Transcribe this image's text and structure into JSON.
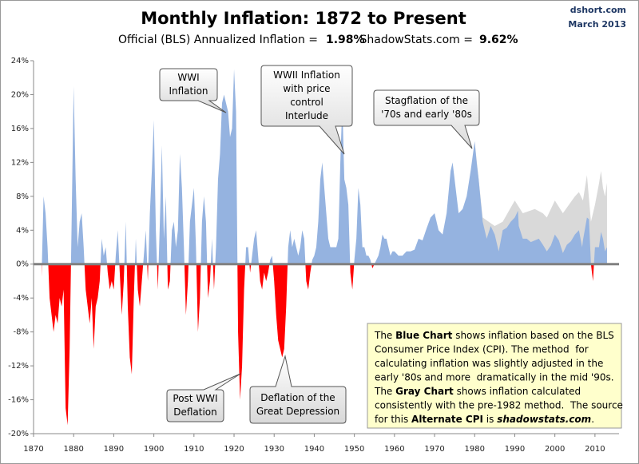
{
  "header": {
    "title": "Monthly Inflation: 1872 to Present",
    "official_label": "Official (BLS) Annualized Inflation =",
    "official_value": "1.98%",
    "shadow_label": "ShadowStats.com =",
    "shadow_value": "9.62%",
    "source": "dshort.com",
    "date": "March 2013"
  },
  "chart_data": {
    "type": "area",
    "xlim": [
      1870,
      2016
    ],
    "xticks": [
      1870,
      1880,
      1890,
      1900,
      1910,
      1920,
      1930,
      1940,
      1950,
      1960,
      1970,
      1980,
      1990,
      2000,
      2010
    ],
    "ylim": [
      -20,
      24
    ],
    "yticks": [
      {
        "value": -20,
        "label": "-20%"
      },
      {
        "value": -16,
        "label": "-16%"
      },
      {
        "value": -12,
        "label": "-12%"
      },
      {
        "value": -8,
        "label": "-8%"
      },
      {
        "value": -4,
        "label": "-4%"
      },
      {
        "value": 0,
        "label": "0%"
      },
      {
        "value": 4,
        "label": "4%"
      },
      {
        "value": 8,
        "label": "8%"
      },
      {
        "value": 12,
        "label": "12%"
      },
      {
        "value": 16,
        "label": "16%"
      },
      {
        "value": 20,
        "label": "20%"
      },
      {
        "value": 24,
        "label": "24%"
      }
    ],
    "series": [
      {
        "color": "#d9d9d9",
        "x": [
          1980,
          1982,
          1985,
          1987,
          1990,
          1992,
          1995,
          1997,
          1998,
          2000,
          2002,
          2005,
          2006,
          2007,
          2008,
          2009,
          2010,
          2011,
          2011.5,
          2012,
          2012.5,
          2013
        ],
        "values": [
          14.5,
          5.5,
          4.5,
          5,
          7.5,
          6,
          6.5,
          6,
          5.5,
          7.5,
          6,
          8,
          8.5,
          7.5,
          10.5,
          5,
          7,
          9.5,
          11,
          9,
          8,
          9.6
        ]
      },
      {
        "positive_color": "#95b3e0",
        "negative_color": "#ff0000",
        "x": [
          1872,
          1872.5,
          1873,
          1873.5,
          1874,
          1874.5,
          1875,
          1875.5,
          1876,
          1876.5,
          1877,
          1877.5,
          1878,
          1878.5,
          1879,
          1879.5,
          1880,
          1880.5,
          1881,
          1881.5,
          1882,
          1882.5,
          1883,
          1883.5,
          1884,
          1884.5,
          1885,
          1885.5,
          1886,
          1886.5,
          1887,
          1887.5,
          1888,
          1888.5,
          1889,
          1889.5,
          1890,
          1890.5,
          1891,
          1891.5,
          1892,
          1892.5,
          1893,
          1893.5,
          1894,
          1894.5,
          1895,
          1895.5,
          1896,
          1896.5,
          1897,
          1897.5,
          1898,
          1898.5,
          1899,
          1899.5,
          1900,
          1900.5,
          1901,
          1901.5,
          1902,
          1902.5,
          1903,
          1903.5,
          1904,
          1904.5,
          1905,
          1905.5,
          1906,
          1906.5,
          1907,
          1907.5,
          1908,
          1908.5,
          1909,
          1909.5,
          1910,
          1910.5,
          1911,
          1911.5,
          1912,
          1912.5,
          1913,
          1913.5,
          1914,
          1914.5,
          1915,
          1915.5,
          1916,
          1916.5,
          1917,
          1917.5,
          1918,
          1918.5,
          1919,
          1919.5,
          1920,
          1920.5,
          1921,
          1921.5,
          1922,
          1922.5,
          1923,
          1923.5,
          1924,
          1924.5,
          1925,
          1925.5,
          1926,
          1926.5,
          1927,
          1927.5,
          1928,
          1928.5,
          1929,
          1929.5,
          1930,
          1930.5,
          1931,
          1931.5,
          1932,
          1932.5,
          1933,
          1933.5,
          1934,
          1934.5,
          1935,
          1935.5,
          1936,
          1936.5,
          1937,
          1937.5,
          1938,
          1938.5,
          1939,
          1939.5,
          1940,
          1940.5,
          1941,
          1941.5,
          1942,
          1942.5,
          1943,
          1943.5,
          1944,
          1944.5,
          1945,
          1945.5,
          1946,
          1946.5,
          1947,
          1947.5,
          1948,
          1948.5,
          1949,
          1949.5,
          1950,
          1950.5,
          1951,
          1951.5,
          1952,
          1952.5,
          1953,
          1953.5,
          1954,
          1954.5,
          1955,
          1955.5,
          1956,
          1956.5,
          1957,
          1957.5,
          1958,
          1958.5,
          1959,
          1959.5,
          1960,
          1961,
          1962,
          1963,
          1964,
          1965,
          1966,
          1967,
          1968,
          1969,
          1970,
          1971,
          1972,
          1973,
          1974,
          1974.5,
          1975,
          1975.5,
          1976,
          1977,
          1978,
          1979,
          1980,
          1980.5,
          1981,
          1982,
          1983,
          1984,
          1985,
          1986,
          1987,
          1988,
          1989,
          1990,
          1990.8,
          1991,
          1992,
          1993,
          1994,
          1995,
          1996,
          1997,
          1998,
          1999,
          2000,
          2001,
          2002,
          2003,
          2004,
          2005,
          2006,
          2006.8,
          2007,
          2008,
          2008.5,
          2009,
          2009.5,
          2010,
          2011,
          2011.5,
          2012,
          2012.5,
          2013
        ],
        "values": [
          -1.5,
          8,
          6,
          2,
          -4,
          -6,
          -8,
          -6,
          -7,
          -4,
          -5,
          -3,
          -17,
          -19,
          -10,
          5,
          21,
          10,
          2,
          5,
          6,
          2,
          -3,
          -5,
          -7,
          -4,
          -10,
          -5,
          -4,
          -2,
          3,
          1,
          2,
          -1,
          -3,
          -2,
          -3,
          1,
          4,
          -1,
          -6,
          -2,
          5,
          -5,
          -11,
          -13,
          -4,
          3,
          -3,
          -5,
          -2,
          1,
          4,
          -2,
          6,
          11,
          17,
          4,
          -3,
          5,
          14,
          3,
          8,
          -3,
          -2,
          4,
          5,
          2,
          4,
          13,
          9,
          2,
          -6,
          -2,
          5,
          7,
          9,
          2,
          -8,
          -4,
          5,
          8,
          5,
          -4,
          -2,
          3,
          -3,
          2,
          10,
          13,
          19,
          20,
          19,
          18,
          15,
          16,
          23,
          18,
          -8,
          -16,
          -12,
          -3,
          2,
          2,
          -1,
          1,
          3,
          4,
          1,
          -2,
          -3,
          -1,
          -2,
          -1,
          0.5,
          1,
          -2,
          -6,
          -9,
          -10,
          -11,
          -10,
          -5,
          2,
          4,
          2,
          3,
          2,
          1,
          2,
          4,
          3,
          -2,
          -3,
          -1,
          0.5,
          1,
          2,
          5,
          10,
          12,
          9,
          6,
          3,
          2,
          2,
          2,
          2,
          3,
          12,
          19,
          10,
          9,
          7,
          -1,
          -3,
          0.5,
          3,
          9,
          7,
          2,
          2,
          1,
          1,
          0.5,
          -0.5,
          0,
          0.5,
          1,
          2,
          3.5,
          3,
          3,
          2,
          1,
          1.5,
          1.5,
          1,
          1,
          1.5,
          1.5,
          1.7,
          3,
          2.8,
          4.2,
          5.5,
          6,
          4,
          3.5,
          6,
          11,
          12,
          10,
          8,
          6,
          6.5,
          8,
          11,
          14.5,
          12,
          10,
          5,
          3,
          4.5,
          3.5,
          1.5,
          4,
          4.3,
          5,
          5.5,
          6.3,
          4.5,
          3,
          3,
          2.6,
          2.8,
          3,
          2.3,
          1.5,
          2.2,
          3.5,
          2.8,
          1.3,
          2.3,
          2.7,
          3.5,
          4,
          2,
          2.8,
          5.5,
          5.3,
          0,
          -2,
          2,
          2,
          3.8,
          3,
          1.5,
          2
        ]
      }
    ],
    "annotations": [
      {
        "lines": [
          "WWI",
          "Inflation"
        ]
      },
      {
        "lines": [
          "WWII Inflation",
          "with price",
          "control",
          "Interlude"
        ]
      },
      {
        "lines": [
          "Stagflation of the",
          "'70s and early '80s"
        ]
      },
      {
        "lines": [
          "Post WWI",
          "Deflation"
        ]
      },
      {
        "lines": [
          "Deflation of the",
          "Great Depression"
        ]
      }
    ],
    "note": [
      [
        {
          "text": "The "
        },
        {
          "text": "Blue Chart",
          "style": "bold"
        },
        {
          "text": " shows inflation based on the BLS"
        }
      ],
      [
        {
          "text": "Consumer Price Index (CPI). The method  for"
        }
      ],
      [
        {
          "text": "calculating inflation was slightly adjusted in the"
        }
      ],
      [
        {
          "text": "early '80s and more  dramatically in the mid '90s."
        }
      ],
      [
        {
          "text": "The "
        },
        {
          "text": "Gray Chart",
          "style": "bold"
        },
        {
          "text": " shows inflation calculated"
        }
      ],
      [
        {
          "text": "consistently with the pre-1982 method.  The source"
        }
      ],
      [
        {
          "text": "for this "
        },
        {
          "text": "Alternate CPI",
          "style": "bold"
        },
        {
          "text": " is "
        },
        {
          "text": "shadowstats.com",
          "style": "bold-italic"
        },
        {
          "text": "."
        }
      ]
    ]
  }
}
